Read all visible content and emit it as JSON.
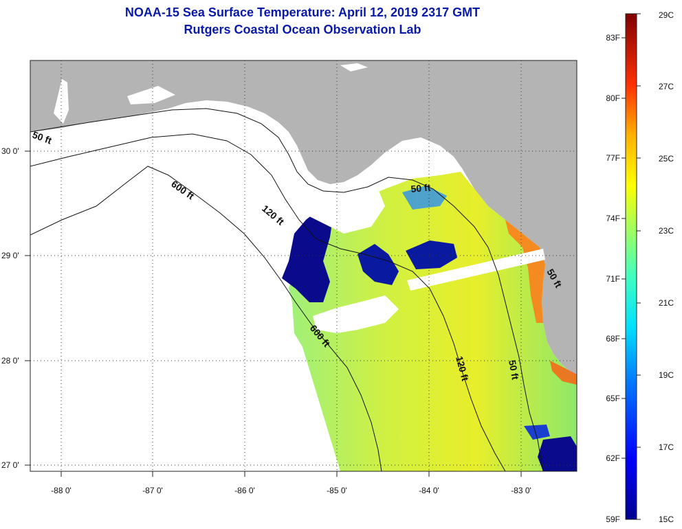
{
  "header": {
    "title_line1": "NOAA-15 Sea Surface Temperature:  April 12, 2019 2317 GMT",
    "title_line2": "Rutgers Coastal Ocean Observation Lab"
  },
  "axes": {
    "lon_ticks": [
      "-88 0'",
      "-87 0'",
      "-86 0'",
      "-85 0'",
      "-84 0'",
      "-83 0'"
    ],
    "lat_ticks": [
      "30 0'",
      "29 0'",
      "28 0'",
      "27 0'"
    ]
  },
  "contours": {
    "labels": [
      "50 ft",
      "600 ft",
      "120 ft",
      "50 ft",
      "600 ft",
      "120 ft",
      "50 ft",
      "50 ft"
    ]
  },
  "colorbar": {
    "fahrenheit_labels": [
      "83F",
      "80F",
      "77F",
      "74F",
      "71F",
      "68F",
      "65F",
      "62F",
      "59F"
    ],
    "celsius_labels": [
      "29C",
      "27C",
      "25C",
      "23C",
      "21C",
      "19C",
      "17C",
      "15C"
    ],
    "min_c": 15,
    "max_c": 29
  },
  "colors": {
    "land": "#b4b4b4",
    "ocean_nodata": "#ffffff",
    "title": "#0a1aa8",
    "cold": "#0a0a8c",
    "warm": "#8b0000"
  }
}
